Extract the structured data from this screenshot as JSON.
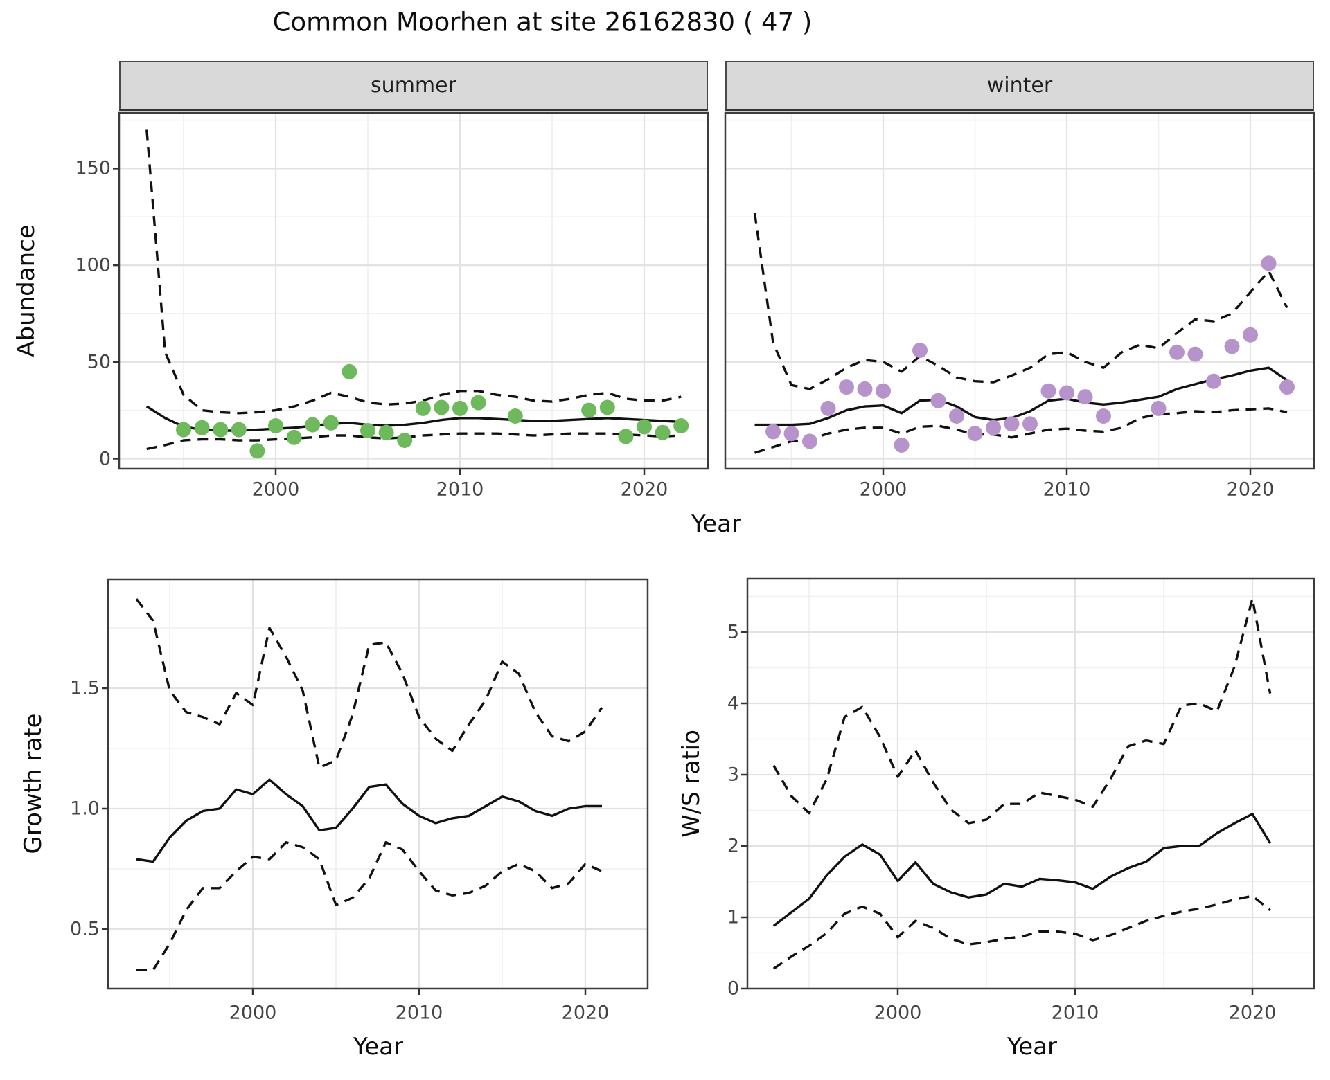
{
  "title": "Common Moorhen at site 26162830 ( 47 )",
  "colors": {
    "summer_point": "#6db95c",
    "winter_point": "#b793cc",
    "line": "#111111",
    "strip_bg": "#d9d9d9",
    "grid_major": "#e2e2e2",
    "grid_minor": "#efefef",
    "panel_border": "#3c3c3c",
    "tick_text": "#444444"
  },
  "chart_data": [
    {
      "id": "abundance-summer",
      "type": "line",
      "facet_label": "summer",
      "xlabel": "Year",
      "ylabel": "Abundance",
      "x_tick_labels": [
        "2000",
        "2010",
        "2020"
      ],
      "y_tick_labels": [
        "0",
        "50",
        "100",
        "150"
      ],
      "xlim": [
        1991.5,
        2023.5
      ],
      "ylim": [
        0,
        185
      ],
      "years": [
        1993,
        1994,
        1995,
        1996,
        1997,
        1998,
        1999,
        2000,
        2001,
        2002,
        2003,
        2004,
        2005,
        2006,
        2007,
        2008,
        2009,
        2010,
        2011,
        2012,
        2013,
        2014,
        2015,
        2016,
        2017,
        2018,
        2019,
        2020,
        2021,
        2022
      ],
      "series": [
        {
          "name": "median",
          "style": "solid",
          "values": [
            27,
            21,
            16.5,
            15,
            14.5,
            14.5,
            15,
            15.5,
            16,
            17,
            18,
            18.5,
            17.5,
            17,
            17.5,
            18.5,
            20,
            21,
            21,
            20.5,
            20,
            19.5,
            19.5,
            20,
            20.5,
            21,
            20.5,
            20,
            19.5,
            19
          ]
        },
        {
          "name": "upper_95ci",
          "style": "dashed",
          "values": [
            170,
            55,
            33,
            25,
            24,
            23.5,
            24,
            25,
            27,
            30,
            34,
            32,
            29,
            28,
            28.5,
            30,
            33,
            35,
            35,
            33,
            32,
            30,
            29.5,
            31,
            33,
            34,
            31,
            30,
            30,
            32
          ]
        },
        {
          "name": "lower_95ci",
          "style": "dashed",
          "values": [
            5,
            7,
            9.5,
            10,
            10,
            9.5,
            9.5,
            10,
            10.5,
            11,
            12,
            12,
            11,
            10.5,
            11,
            12,
            12.5,
            13,
            13,
            13,
            12.5,
            12,
            12.5,
            13,
            13,
            13,
            12.5,
            12,
            11.5,
            12
          ]
        }
      ],
      "observed_points": {
        "color_key": "summer_point",
        "years": [
          1995,
          1996,
          1997,
          1998,
          1999,
          2000,
          2001,
          2002,
          2003,
          2004,
          2005,
          2006,
          2007,
          2008,
          2009,
          2010,
          2011,
          2013,
          2017,
          2018,
          2019,
          2020,
          2021,
          2022
        ],
        "values": [
          15,
          16,
          15,
          15,
          4,
          17,
          11,
          17.5,
          18.5,
          45,
          14.5,
          13.5,
          9.5,
          26,
          26.5,
          26,
          29,
          22,
          25,
          26.5,
          11.5,
          16.5,
          13.5,
          17
        ]
      }
    },
    {
      "id": "abundance-winter",
      "type": "line",
      "facet_label": "winter",
      "xlabel": "Year",
      "ylabel": "Abundance",
      "x_tick_labels": [
        "2000",
        "2010",
        "2020"
      ],
      "y_tick_labels": [
        "0",
        "50",
        "100",
        "150"
      ],
      "xlim": [
        1991.5,
        2023.5
      ],
      "ylim": [
        0,
        185
      ],
      "years": [
        1993,
        1994,
        1995,
        1996,
        1997,
        1998,
        1999,
        2000,
        2001,
        2002,
        2003,
        2004,
        2005,
        2006,
        2007,
        2008,
        2009,
        2010,
        2011,
        2012,
        2013,
        2014,
        2015,
        2016,
        2017,
        2018,
        2019,
        2020,
        2021,
        2022
      ],
      "series": [
        {
          "name": "median",
          "style": "solid",
          "values": [
            17.5,
            17.5,
            17.5,
            18,
            21,
            25,
            27,
            27.5,
            23.5,
            30,
            30.5,
            27,
            21.5,
            20,
            21,
            24.5,
            30,
            31,
            29,
            28,
            29,
            30.5,
            32,
            36,
            38.5,
            41,
            43,
            45.5,
            47,
            40.5
          ]
        },
        {
          "name": "upper_95ci",
          "style": "dashed",
          "values": [
            127,
            60,
            38,
            36,
            41,
            47,
            51,
            50,
            45,
            53,
            48,
            42,
            40,
            39.5,
            43,
            47,
            54,
            55,
            50,
            47,
            55,
            59,
            57,
            65,
            72,
            71,
            75,
            86,
            97,
            78
          ]
        },
        {
          "name": "lower_95ci",
          "style": "dashed",
          "values": [
            3,
            6,
            9,
            10,
            13,
            15,
            16,
            16,
            13,
            16.5,
            17,
            15,
            12.5,
            12.5,
            11,
            13,
            15,
            15.5,
            14.5,
            14,
            16,
            21,
            23,
            23.5,
            24.5,
            24,
            25,
            25.5,
            26,
            24
          ]
        }
      ],
      "observed_points": {
        "color_key": "winter_point",
        "years": [
          1994,
          1995,
          1996,
          1997,
          1998,
          1999,
          2000,
          2001,
          2002,
          2003,
          2004,
          2005,
          2006,
          2007,
          2008,
          2009,
          2010,
          2011,
          2012,
          2015,
          2016,
          2017,
          2018,
          2019,
          2020,
          2021,
          2022
        ],
        "values": [
          14,
          13,
          9,
          26,
          37,
          36,
          35,
          7,
          56,
          30,
          22,
          13,
          16,
          18,
          18,
          35,
          34,
          32,
          22,
          26,
          55,
          54,
          40,
          58,
          64,
          101,
          37
        ]
      }
    },
    {
      "id": "growth-rate",
      "type": "line",
      "facet_label": "",
      "xlabel": "Year",
      "ylabel": "Growth rate",
      "x_tick_labels": [
        "2000",
        "2010",
        "2020"
      ],
      "y_tick_labels": [
        "0.5",
        "1.0",
        "1.5"
      ],
      "xlim": [
        1991.3,
        2023.8
      ],
      "ylim": [
        0.25,
        1.95
      ],
      "years": [
        1993,
        1994,
        1995,
        1996,
        1997,
        1998,
        1999,
        2000,
        2001,
        2002,
        2003,
        2004,
        2005,
        2006,
        2007,
        2008,
        2009,
        2010,
        2011,
        2012,
        2013,
        2014,
        2015,
        2016,
        2017,
        2018,
        2019,
        2020,
        2021
      ],
      "series": [
        {
          "name": "median",
          "style": "solid",
          "values": [
            0.79,
            0.78,
            0.88,
            0.95,
            0.99,
            1.0,
            1.08,
            1.06,
            1.12,
            1.06,
            1.01,
            0.91,
            0.92,
            1.0,
            1.09,
            1.1,
            1.02,
            0.97,
            0.94,
            0.96,
            0.97,
            1.01,
            1.05,
            1.03,
            0.99,
            0.97,
            1.0,
            1.01,
            1.01
          ]
        },
        {
          "name": "upper_95ci",
          "style": "dashed",
          "values": [
            1.87,
            1.78,
            1.49,
            1.4,
            1.38,
            1.35,
            1.48,
            1.43,
            1.75,
            1.63,
            1.49,
            1.17,
            1.2,
            1.39,
            1.68,
            1.69,
            1.56,
            1.38,
            1.29,
            1.24,
            1.35,
            1.45,
            1.61,
            1.56,
            1.4,
            1.3,
            1.28,
            1.32,
            1.42
          ]
        },
        {
          "name": "lower_95ci",
          "style": "dashed",
          "values": [
            0.33,
            0.33,
            0.44,
            0.58,
            0.67,
            0.67,
            0.74,
            0.8,
            0.79,
            0.86,
            0.84,
            0.79,
            0.6,
            0.63,
            0.71,
            0.86,
            0.83,
            0.74,
            0.66,
            0.64,
            0.65,
            0.68,
            0.74,
            0.77,
            0.74,
            0.67,
            0.69,
            0.77,
            0.74
          ]
        }
      ]
    },
    {
      "id": "ws-ratio",
      "type": "line",
      "facet_label": "",
      "xlabel": "Year",
      "ylabel": "W/S ratio",
      "x_tick_labels": [
        "2000",
        "2010",
        "2020"
      ],
      "y_tick_labels": [
        "0",
        "1",
        "2",
        "3",
        "4",
        "5"
      ],
      "xlim": [
        1991.5,
        2023.5
      ],
      "ylim": [
        0,
        5.75
      ],
      "years": [
        1993,
        1994,
        1995,
        1996,
        1997,
        1998,
        1999,
        2000,
        2001,
        2002,
        2003,
        2004,
        2005,
        2006,
        2007,
        2008,
        2009,
        2010,
        2011,
        2012,
        2013,
        2014,
        2015,
        2016,
        2017,
        2018,
        2019,
        2020,
        2021
      ],
      "series": [
        {
          "name": "median",
          "style": "solid",
          "values": [
            0.88,
            1.07,
            1.26,
            1.59,
            1.85,
            2.02,
            1.88,
            1.51,
            1.77,
            1.47,
            1.35,
            1.28,
            1.32,
            1.47,
            1.43,
            1.54,
            1.52,
            1.49,
            1.4,
            1.57,
            1.69,
            1.78,
            1.97,
            2.0,
            2.0,
            2.18,
            2.32,
            2.45,
            2.04
          ]
        },
        {
          "name": "upper_95ci",
          "style": "dashed",
          "values": [
            3.13,
            2.7,
            2.46,
            2.94,
            3.81,
            3.95,
            3.53,
            2.97,
            3.34,
            2.89,
            2.51,
            2.32,
            2.37,
            2.59,
            2.59,
            2.75,
            2.7,
            2.65,
            2.55,
            2.94,
            3.4,
            3.48,
            3.43,
            3.97,
            4.0,
            3.89,
            4.52,
            5.47,
            4.14
          ]
        },
        {
          "name": "lower_95ci",
          "style": "dashed",
          "values": [
            0.28,
            0.45,
            0.6,
            0.78,
            1.05,
            1.15,
            1.05,
            0.72,
            0.95,
            0.85,
            0.7,
            0.62,
            0.65,
            0.7,
            0.73,
            0.8,
            0.8,
            0.77,
            0.68,
            0.75,
            0.85,
            0.95,
            1.02,
            1.08,
            1.12,
            1.18,
            1.25,
            1.3,
            1.1
          ]
        }
      ]
    }
  ]
}
